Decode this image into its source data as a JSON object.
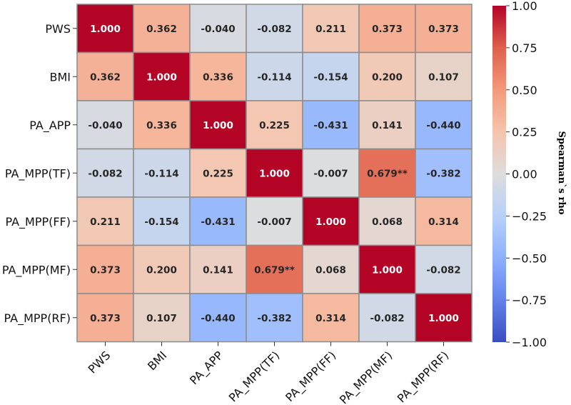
{
  "chart_data": {
    "type": "heatmap",
    "title": "",
    "row_labels": [
      "PWS",
      "BMI",
      "PA_APP",
      "PA_MPP(TF)",
      "PA_MPP(FF)",
      "PA_MPP(MF)",
      "PA_MPP(RF)"
    ],
    "col_labels": [
      "PWS",
      "BMI",
      "PA_APP",
      "PA_MPP(TF)",
      "PA_MPP(FF)",
      "PA_MPP(MF)",
      "PA_MPP(RF)"
    ],
    "values": [
      [
        1.0,
        0.362,
        -0.04,
        -0.082,
        0.211,
        0.373,
        0.373
      ],
      [
        0.362,
        1.0,
        0.336,
        -0.114,
        -0.154,
        0.2,
        0.107
      ],
      [
        -0.04,
        0.336,
        1.0,
        0.225,
        -0.431,
        0.141,
        -0.44
      ],
      [
        -0.082,
        -0.114,
        0.225,
        1.0,
        -0.007,
        0.679,
        -0.382
      ],
      [
        0.211,
        -0.154,
        -0.431,
        -0.007,
        1.0,
        0.068,
        0.314
      ],
      [
        0.373,
        0.2,
        0.141,
        0.679,
        0.068,
        1.0,
        -0.082
      ],
      [
        0.373,
        0.107,
        -0.44,
        -0.382,
        0.314,
        -0.082,
        1.0
      ]
    ],
    "cell_text": [
      [
        "1.000",
        "0.362",
        "-0.040",
        "-0.082",
        "0.211",
        "0.373",
        "0.373"
      ],
      [
        "0.362",
        "1.000",
        "0.336",
        "-0.114",
        "-0.154",
        "0.200",
        "0.107"
      ],
      [
        "-0.040",
        "0.336",
        "1.000",
        "0.225",
        "-0.431",
        "0.141",
        "-0.440"
      ],
      [
        "-0.082",
        "-0.114",
        "0.225",
        "1.000",
        "-0.007",
        "0.679**",
        "-0.382"
      ],
      [
        "0.211",
        "-0.154",
        "-0.431",
        "-0.007",
        "1.000",
        "0.068",
        "0.314"
      ],
      [
        "0.373",
        "0.200",
        "0.141",
        "0.679**",
        "0.068",
        "1.000",
        "-0.082"
      ],
      [
        "0.373",
        "0.107",
        "-0.440",
        "-0.382",
        "0.314",
        "-0.082",
        "1.000"
      ]
    ],
    "vmin": -1.0,
    "vmax": 1.0,
    "colormap": "coolwarm",
    "colorbar": {
      "label": "Spearman`s rho",
      "ticks": [
        1.0,
        0.75,
        0.5,
        0.25,
        0.0,
        -0.25,
        -0.5,
        -0.75,
        -1.0
      ],
      "tick_labels": [
        "1.00",
        "0.75",
        "0.50",
        "0.25",
        "0.00",
        "−0.25",
        "−0.50",
        "−0.75",
        "−1.00"
      ]
    }
  }
}
